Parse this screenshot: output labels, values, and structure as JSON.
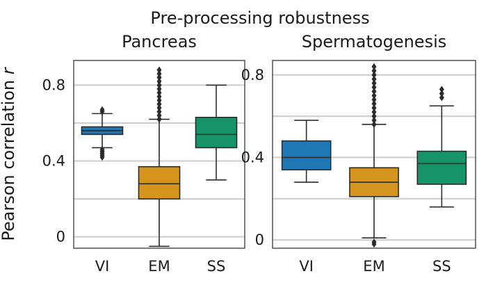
{
  "figure": {
    "title": "Pre-processing robustness",
    "ylabel": "Pearson correlation",
    "ylabel_var": "r"
  },
  "colors": {
    "VI": "#1f77b4",
    "EM": "#d4941e",
    "SS": "#17936b",
    "grid": "#cfcfcf",
    "frame": "#444444",
    "line": "#2b2b2b"
  },
  "chart_data": [
    {
      "type": "box",
      "title": "Pancreas",
      "categories": [
        "VI",
        "EM",
        "SS"
      ],
      "ylim": [
        -0.06,
        0.93
      ],
      "yticks": [
        0,
        0.4,
        0.8
      ],
      "ytick_labels": [
        "0",
        "0.4",
        "0.8"
      ],
      "gridlines": [
        0,
        0.2,
        0.4,
        0.6,
        0.8
      ],
      "boxes": [
        {
          "name": "VI",
          "whisker_low": 0.47,
          "q1": 0.54,
          "median": 0.56,
          "q3": 0.58,
          "whisker_high": 0.65,
          "outliers": [
            0.42,
            0.43,
            0.44,
            0.45,
            0.46,
            0.66,
            0.67
          ]
        },
        {
          "name": "EM",
          "whisker_low": -0.05,
          "q1": 0.2,
          "median": 0.28,
          "q3": 0.37,
          "whisker_high": 0.62,
          "outliers": [
            0.62,
            0.64,
            0.66,
            0.68,
            0.7,
            0.72,
            0.74,
            0.76,
            0.78,
            0.8,
            0.82,
            0.84,
            0.86,
            0.88
          ]
        },
        {
          "name": "SS",
          "whisker_low": 0.3,
          "q1": 0.47,
          "median": 0.54,
          "q3": 0.63,
          "whisker_high": 0.8,
          "outliers": []
        }
      ]
    },
    {
      "type": "box",
      "title": "Spermatogenesis",
      "categories": [
        "VI",
        "EM",
        "SS"
      ],
      "ylim": [
        -0.04,
        0.87
      ],
      "yticks": [
        0,
        0.4,
        0.8
      ],
      "ytick_labels": [
        "0",
        "0.4",
        "0.8"
      ],
      "gridlines": [
        0,
        0.2,
        0.4,
        0.6,
        0.8
      ],
      "boxes": [
        {
          "name": "VI",
          "whisker_low": 0.28,
          "q1": 0.34,
          "median": 0.4,
          "q3": 0.48,
          "whisker_high": 0.58,
          "outliers": []
        },
        {
          "name": "EM",
          "whisker_low": 0.01,
          "q1": 0.21,
          "median": 0.28,
          "q3": 0.35,
          "whisker_high": 0.56,
          "outliers": [
            -0.02,
            -0.01,
            0.56,
            0.58,
            0.6,
            0.62,
            0.64,
            0.66,
            0.68,
            0.7,
            0.72,
            0.74,
            0.76,
            0.78,
            0.8,
            0.82,
            0.84
          ]
        },
        {
          "name": "SS",
          "whisker_low": 0.16,
          "q1": 0.27,
          "median": 0.37,
          "q3": 0.43,
          "whisker_high": 0.65,
          "outliers": [
            0.69,
            0.71,
            0.73
          ]
        }
      ]
    }
  ]
}
